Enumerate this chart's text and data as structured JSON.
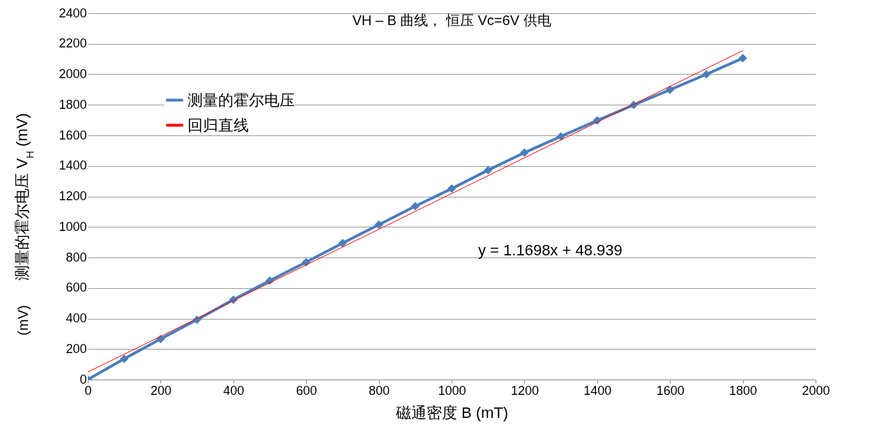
{
  "chart_data": {
    "type": "line",
    "title": "VH – B 曲线， 恒压 Vc=6V 供电",
    "xlabel": "磁通密度 B (mT)",
    "ylabel": "测量的霍尔电压 V$_{H}$ (mV)",
    "x": [
      0,
      100,
      200,
      300,
      400,
      500,
      600,
      700,
      800,
      900,
      1000,
      1100,
      1200,
      1300,
      1400,
      1500,
      1600,
      1700,
      1800
    ],
    "series": [
      {
        "name": "测量的霍尔电压",
        "color": "#4a7ebb",
        "values": [
          0,
          136,
          266,
          392,
          523,
          648,
          769,
          894,
          1015,
          1136,
          1251,
          1372,
          1487,
          1593,
          1698,
          1799,
          1899,
          2000,
          2106
        ]
      },
      {
        "name": "回归直线",
        "type": "line",
        "color": "#ff0000",
        "marker": "none",
        "x": [
          0,
          1800
        ],
        "values": [
          49,
          2155
        ]
      }
    ],
    "xlim": [
      0,
      2000
    ],
    "xticks": [
      0,
      200,
      400,
      600,
      800,
      1000,
      1200,
      1400,
      1600,
      1800,
      2000
    ],
    "ylim": [
      0,
      2400
    ],
    "yticks": [
      0,
      200,
      400,
      600,
      800,
      1000,
      1200,
      1400,
      1600,
      1800,
      2000,
      2200,
      2400
    ],
    "grid": "y",
    "legend": "top left",
    "marker": "diamond",
    "annotations": [
      "y = 1.1698x + 48.939",
      "(mV)"
    ]
  }
}
